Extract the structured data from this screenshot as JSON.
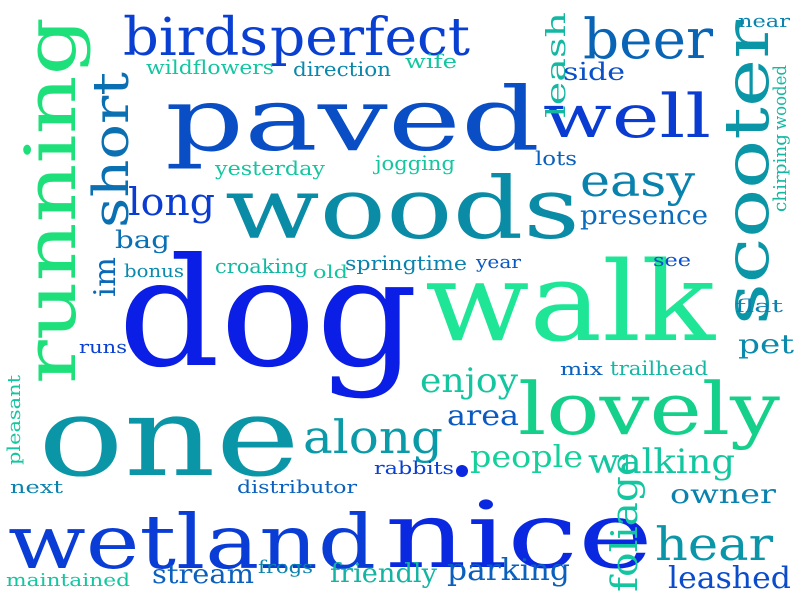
{
  "words": [
    {
      "text": "dog",
      "color": "#0a1ee6"
    },
    {
      "text": "walk",
      "color": "#1ee696"
    },
    {
      "text": "one",
      "color": "#0a96a6"
    },
    {
      "text": "woods",
      "color": "#0a8ca6"
    },
    {
      "text": "paved",
      "color": "#0a4ec6"
    },
    {
      "text": "nice",
      "color": "#0a28e0"
    },
    {
      "text": "wetland",
      "color": "#0a3cd6"
    },
    {
      "text": "lovely",
      "color": "#14d08a"
    },
    {
      "text": "running",
      "color": "#1ee07a"
    },
    {
      "text": "scooter",
      "color": "#0a96a6"
    },
    {
      "text": "well",
      "color": "#0a3cd2"
    },
    {
      "text": "beer",
      "color": "#0a64b6"
    },
    {
      "text": "birds",
      "color": "#0a40d2"
    },
    {
      "text": "perfect",
      "color": "#0a40d2"
    },
    {
      "text": "short",
      "color": "#0a70b2"
    },
    {
      "text": "along",
      "color": "#0a9aa8"
    },
    {
      "text": "easy",
      "color": "#0a82ae"
    },
    {
      "text": "hear",
      "color": "#0a96a8"
    },
    {
      "text": "long",
      "color": "#0a3cd2"
    },
    {
      "text": "foliage",
      "color": "#14c6a0"
    },
    {
      "text": "enjoy",
      "color": "#14c6a0"
    },
    {
      "text": "walking",
      "color": "#14c6a0"
    },
    {
      "text": "people",
      "color": "#14d09a"
    },
    {
      "text": "presence",
      "color": "#0a6cbe"
    },
    {
      "text": "parking",
      "color": "#0a60bc"
    },
    {
      "text": "leashed",
      "color": "#0a4cca"
    },
    {
      "text": "area",
      "color": "#0a5ac2"
    },
    {
      "text": "im",
      "color": "#0a6ab8"
    },
    {
      "text": "stream",
      "color": "#0a60bc"
    },
    {
      "text": "friendly",
      "color": "#14b4a2"
    },
    {
      "text": "owner",
      "color": "#0a82ae"
    },
    {
      "text": "pet",
      "color": "#0a8aac"
    },
    {
      "text": "bag",
      "color": "#0a70b4"
    },
    {
      "text": "leash",
      "color": "#14b8a2"
    },
    {
      "text": "side",
      "color": "#0a50c8"
    },
    {
      "text": "lots",
      "color": "#0a60bc"
    },
    {
      "text": "wildflowers",
      "color": "#14c6a0"
    },
    {
      "text": "direction",
      "color": "#0a88ac"
    },
    {
      "text": "wife",
      "color": "#14c6a0"
    },
    {
      "text": "near",
      "color": "#0a84ae"
    },
    {
      "text": "chirping",
      "color": "#14b8a2"
    },
    {
      "text": "wooded",
      "color": "#14b8a2"
    },
    {
      "text": "yesterday",
      "color": "#14c6a0"
    },
    {
      "text": "jogging",
      "color": "#14c6a0"
    },
    {
      "text": "bonus",
      "color": "#0a8aac"
    },
    {
      "text": "croaking",
      "color": "#14b8a2"
    },
    {
      "text": "old",
      "color": "#14c6a0"
    },
    {
      "text": "springtime",
      "color": "#0a82ae"
    },
    {
      "text": "year",
      "color": "#0a58c4"
    },
    {
      "text": "see",
      "color": "#0a50c8"
    },
    {
      "text": "flat",
      "color": "#0a82ae"
    },
    {
      "text": "runs",
      "color": "#0a40d2"
    },
    {
      "text": "mix",
      "color": "#0a60bc"
    },
    {
      "text": "trailhead",
      "color": "#14b8a2"
    },
    {
      "text": "pleasant",
      "color": "#14c6a0"
    },
    {
      "text": "next",
      "color": "#0a82ae"
    },
    {
      "text": "distributor",
      "color": "#0a60bc"
    },
    {
      "text": "rabbits",
      "color": "#0a40d2"
    },
    {
      "text": "maintained",
      "color": "#14c6a0"
    },
    {
      "text": "frogs",
      "color": "#0a82ae"
    }
  ]
}
